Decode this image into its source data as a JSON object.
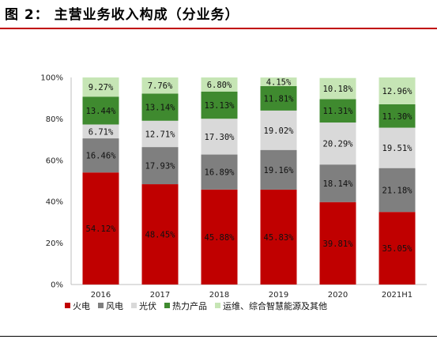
{
  "figure": {
    "title": "图 2： 主营业务收入构成（分业务）"
  },
  "chart_data": {
    "type": "bar",
    "stacked": true,
    "categories": [
      "2016",
      "2017",
      "2018",
      "2019",
      "2020",
      "2021H1"
    ],
    "ylim": [
      0,
      100
    ],
    "yticks": [
      "0%",
      "20%",
      "40%",
      "60%",
      "80%",
      "100%"
    ],
    "legend_position": "bottom",
    "series": [
      {
        "name": "火电",
        "color": "#c00000",
        "values": [
          54.12,
          48.45,
          45.88,
          45.83,
          39.81,
          35.05
        ],
        "labels": [
          "54.12%",
          "48.45%",
          "45.88%",
          "45.83%",
          "39.81%",
          "35.05%"
        ]
      },
      {
        "name": "风电",
        "color": "#7f7f7f",
        "values": [
          16.46,
          17.93,
          16.89,
          19.16,
          18.14,
          21.18
        ],
        "labels": [
          "16.46%",
          "17.93%",
          "16.89%",
          "19.16%",
          "18.14%",
          "21.18%"
        ]
      },
      {
        "name": "光伏",
        "color": "#d9d9d9",
        "values": [
          6.71,
          12.71,
          17.3,
          19.02,
          20.29,
          19.51
        ],
        "labels": [
          "6.71%",
          "12.71%",
          "17.30%",
          "19.02%",
          "20.29%",
          "19.51%"
        ]
      },
      {
        "name": "热力产品",
        "color": "#3f8a2f",
        "values": [
          13.44,
          13.14,
          13.13,
          11.81,
          11.31,
          11.3
        ],
        "labels": [
          "13.44%",
          "13.14%",
          "13.13%",
          "11.81%",
          "11.31%",
          "11.30%"
        ]
      },
      {
        "name": "运维、综合智慧能源及其他",
        "color": "#c6e5b5",
        "values": [
          9.27,
          7.76,
          6.8,
          4.15,
          10.18,
          12.96
        ],
        "labels": [
          "9.27%",
          "7.76%",
          "6.80%",
          "4.15%",
          "10.18%",
          "12.96%"
        ]
      }
    ]
  }
}
